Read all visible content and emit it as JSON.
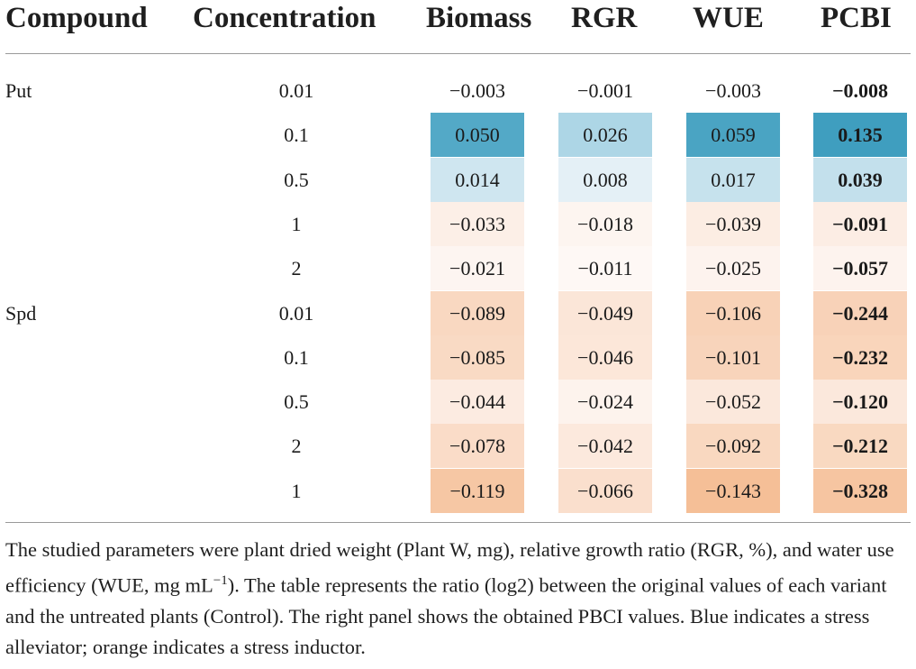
{
  "table": {
    "headers": [
      "Compound",
      "Concentration",
      "Biomass",
      "RGR",
      "WUE",
      "PCBI"
    ],
    "rows": [
      {
        "compound": "Put",
        "concentration": "0.01",
        "biomass": "−0.003",
        "rgr": "−0.001",
        "wue": "−0.003",
        "pcbi": "−0.008",
        "colors": {
          "biomass": "#ffffff",
          "rgr": "#ffffff",
          "wue": "#ffffff",
          "pcbi": "#ffffff"
        }
      },
      {
        "compound": "",
        "concentration": "0.1",
        "biomass": "0.050",
        "rgr": "0.026",
        "wue": "0.059",
        "pcbi": "0.135",
        "colors": {
          "biomass": "#53a9c7",
          "rgr": "#add6e6",
          "wue": "#4aa4c3",
          "pcbi": "#3f9ebf"
        }
      },
      {
        "compound": "",
        "concentration": "0.5",
        "biomass": "0.014",
        "rgr": "0.008",
        "wue": "0.017",
        "pcbi": "0.039",
        "colors": {
          "biomass": "#cfe6f0",
          "rgr": "#e4f0f6",
          "wue": "#c6e2ed",
          "pcbi": "#c3e0ec"
        }
      },
      {
        "compound": "",
        "concentration": "1",
        "biomass": "−0.033",
        "rgr": "−0.018",
        "wue": "−0.039",
        "pcbi": "−0.091",
        "colors": {
          "biomass": "#fcefe7",
          "rgr": "#fdf5f0",
          "wue": "#fcede3",
          "pcbi": "#fcede4"
        }
      },
      {
        "compound": "",
        "concentration": "2",
        "biomass": "−0.021",
        "rgr": "−0.011",
        "wue": "−0.025",
        "pcbi": "−0.057",
        "colors": {
          "biomass": "#fdf5f1",
          "rgr": "#fef8f5",
          "wue": "#fdf3ee",
          "pcbi": "#fdf3ee"
        }
      },
      {
        "compound": "Spd",
        "concentration": "0.01",
        "biomass": "−0.089",
        "rgr": "−0.049",
        "wue": "−0.106",
        "pcbi": "−0.244",
        "colors": {
          "biomass": "#f9d8c1",
          "rgr": "#fbe6d8",
          "wue": "#f8d2b7",
          "pcbi": "#f8d2b8"
        }
      },
      {
        "compound": "",
        "concentration": "0.1",
        "biomass": "−0.085",
        "rgr": "−0.046",
        "wue": "−0.101",
        "pcbi": "−0.232",
        "colors": {
          "biomass": "#f9dac4",
          "rgr": "#fce7d9",
          "wue": "#f8d4bb",
          "pcbi": "#f9d5bb"
        }
      },
      {
        "compound": "",
        "concentration": "0.5",
        "biomass": "−0.044",
        "rgr": "−0.024",
        "wue": "−0.052",
        "pcbi": "−0.120",
        "colors": {
          "biomass": "#fcebe1",
          "rgr": "#fdf3ed",
          "wue": "#fbe8dc",
          "pcbi": "#fbe8dc"
        }
      },
      {
        "compound": "",
        "concentration": "2",
        "biomass": "−0.078",
        "rgr": "−0.042",
        "wue": "−0.092",
        "pcbi": "−0.212",
        "colors": {
          "biomass": "#fadcc8",
          "rgr": "#fce9dd",
          "wue": "#f9d8c0",
          "pcbi": "#f9d9c1"
        }
      },
      {
        "compound": "",
        "concentration": "1",
        "biomass": "−0.119",
        "rgr": "−0.066",
        "wue": "−0.143",
        "pcbi": "−0.328",
        "colors": {
          "biomass": "#f6c7a4",
          "rgr": "#fadfcd",
          "wue": "#f5bf97",
          "pcbi": "#f6c5a1"
        }
      }
    ]
  },
  "footnote": "The studied parameters were plant dried weight (Plant W, mg), relative growth ratio (RGR, %), and water use efficiency (WUE, mg mL−1). The table represents the ratio (log2) between the original values of each variant and the untreated plants (Control). The right panel shows the obtained PBCI values. Blue indicates a stress alleviator; orange indicates a stress inductor.",
  "footnote_parts": {
    "before_sup": "The studied parameters were plant dried weight (Plant W, mg), relative growth ratio (RGR, %), and water use efficiency (WUE, mg mL",
    "sup": "−1",
    "after_sup": "). The table represents the ratio (log2) between the original values of each variant and the untreated plants (Control). The right panel shows the obtained PBCI values. Blue indicates a stress alleviator; orange indicates a stress inductor."
  }
}
